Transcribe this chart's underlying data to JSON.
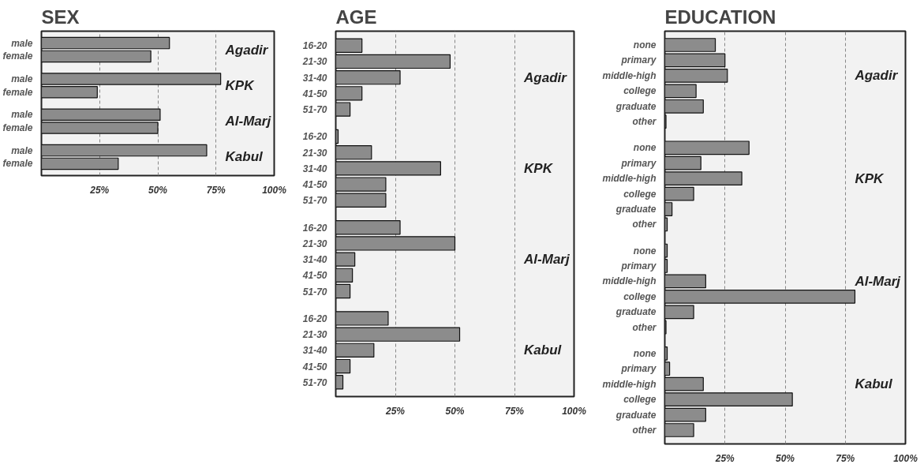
{
  "chart_data": [
    {
      "type": "bar",
      "orientation": "horizontal",
      "title": "SEX",
      "color": "#8c8c8c",
      "grid": "x",
      "categories": [
        "male",
        "female",
        "male",
        "female",
        "male",
        "female",
        "male",
        "female"
      ],
      "values": [
        55,
        47,
        77,
        24,
        51,
        50,
        71,
        33
      ],
      "annotations": [
        "Agadir",
        "KPK",
        "Al-Marj",
        "Kabul"
      ],
      "xlim": [
        0,
        100
      ],
      "xticks": [
        {
          "value": 25,
          "label": "25%"
        },
        {
          "value": 50,
          "label": "50%"
        },
        {
          "value": 75,
          "label": "75%"
        },
        {
          "value": 100,
          "label": "100%"
        }
      ]
    },
    {
      "type": "bar",
      "orientation": "horizontal",
      "title": "AGE",
      "color": "#8c8c8c",
      "grid": "x",
      "categories": [
        "16-20",
        "21-30",
        "31-40",
        "41-50",
        "51-70",
        "16-20",
        "21-30",
        "31-40",
        "41-50",
        "51-70",
        "16-20",
        "21-30",
        "31-40",
        "41-50",
        "51-70",
        "16-20",
        "21-30",
        "31-40",
        "41-50",
        "51-70"
      ],
      "values": [
        11,
        48,
        27,
        11,
        6,
        1,
        15,
        44,
        21,
        21,
        27,
        50,
        8,
        7,
        6,
        22,
        52,
        16,
        6,
        3
      ],
      "annotations": [
        "Agadir",
        "KPK",
        "Al-Marj",
        "Kabul"
      ],
      "xlim": [
        0,
        100
      ],
      "xticks": [
        {
          "value": 25,
          "label": "25%"
        },
        {
          "value": 50,
          "label": "50%"
        },
        {
          "value": 75,
          "label": "75%"
        },
        {
          "value": 100,
          "label": "100%"
        }
      ]
    },
    {
      "type": "bar",
      "orientation": "horizontal",
      "title": "EDUCATION",
      "color": "#8c8c8c",
      "grid": "x",
      "categories": [
        "none",
        "primary",
        "middle-high",
        "college",
        "graduate",
        "other",
        "none",
        "primary",
        "middle-high",
        "college",
        "graduate",
        "other",
        "none",
        "primary",
        "middle-high",
        "college",
        "graduate",
        "other",
        "none",
        "primary",
        "middle-high",
        "college",
        "graduate",
        "other"
      ],
      "values": [
        21,
        25,
        26,
        13,
        16,
        0.5,
        35,
        15,
        32,
        12,
        3,
        1,
        1,
        1,
        17,
        79,
        12,
        0.5,
        1,
        2,
        16,
        53,
        17,
        12
      ],
      "annotations": [
        "Agadir",
        "KPK",
        "Al-Marj",
        "Kabul"
      ],
      "xlim": [
        0,
        100
      ],
      "xticks": [
        {
          "value": 25,
          "label": "25%"
        },
        {
          "value": 50,
          "label": "50%"
        },
        {
          "value": 75,
          "label": "75%"
        },
        {
          "value": 100,
          "label": "100%"
        }
      ]
    }
  ]
}
